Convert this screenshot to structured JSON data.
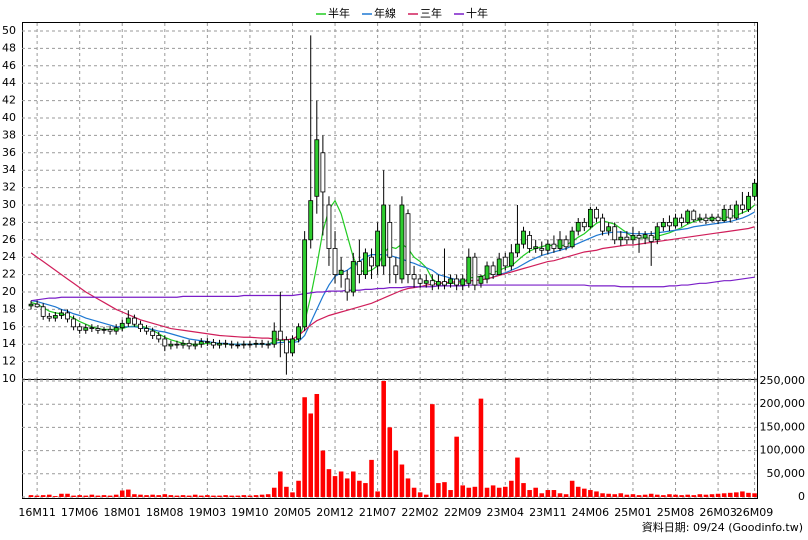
{
  "chart_data": {
    "type": "candlestick",
    "categories": [
      null,
      "16M11",
      null,
      null,
      null,
      null,
      null,
      null,
      "17M06",
      null,
      null,
      null,
      null,
      null,
      null,
      "18M01",
      null,
      null,
      null,
      null,
      null,
      null,
      "18M08",
      null,
      null,
      null,
      null,
      null,
      null,
      "19M03",
      null,
      null,
      null,
      null,
      null,
      null,
      "19M10",
      null,
      null,
      null,
      null,
      null,
      null,
      "20M05",
      null,
      null,
      null,
      null,
      null,
      null,
      "20M12",
      null,
      null,
      null,
      null,
      null,
      null,
      "21M07",
      null,
      null,
      null,
      null,
      null,
      null,
      "22M02",
      null,
      null,
      null,
      null,
      null,
      null,
      "22M09",
      null,
      null,
      null,
      null,
      null,
      null,
      "23M04",
      null,
      null,
      null,
      null,
      null,
      null,
      "23M11",
      null,
      null,
      null,
      null,
      null,
      null,
      "24M06",
      null,
      null,
      null,
      null,
      null,
      null,
      "25M01",
      null,
      null,
      null,
      null,
      null,
      null,
      "25M08",
      null,
      null,
      null,
      null,
      null,
      null,
      "26M03",
      null,
      null,
      null,
      null,
      null,
      "26M09"
    ],
    "open": [
      18.4,
      18.6,
      18.3,
      17.2,
      17.0,
      17.3,
      17.6,
      16.9,
      16.0,
      15.6,
      15.9,
      15.8,
      15.6,
      15.7,
      15.5,
      15.9,
      16.4,
      17.0,
      16.3,
      15.8,
      15.5,
      15.0,
      14.6,
      13.8,
      14.0,
      13.9,
      14.1,
      13.8,
      14.0,
      14.3,
      14.2,
      13.9,
      14.1,
      14.0,
      13.9,
      13.9,
      14.0,
      14.0,
      14.1,
      14.0,
      14.0,
      15.5,
      14.5,
      13.0,
      14.6,
      16,
      26,
      31,
      36,
      30,
      25,
      22,
      21.5,
      20,
      23.5,
      22,
      24,
      23,
      23,
      28,
      23,
      21.5,
      29,
      22,
      21.5,
      21,
      21.3,
      20.8,
      21.2,
      21,
      21.5,
      20.8,
      21,
      24,
      21,
      21.5,
      23,
      22,
      24,
      23,
      24.5,
      25.5,
      26.5,
      25,
      25,
      24.8,
      25.5,
      25,
      26,
      25.2,
      27,
      28,
      27.5,
      29.5,
      28.5,
      27,
      27.5,
      26,
      26.3,
      26,
      26.5,
      26.2,
      26.5,
      26,
      27.5,
      28,
      27.6,
      28.5,
      28,
      29.3,
      28.3,
      28.5,
      28.2,
      28.6,
      28.2,
      29.5,
      28.5,
      30,
      29.5,
      31
    ],
    "high": [
      19.0,
      19.0,
      18.7,
      17.6,
      17.7,
      18.0,
      18.0,
      17.3,
      16.4,
      16.3,
      16.3,
      16.2,
      16.0,
      16.1,
      16.3,
      16.8,
      17.9,
      17.4,
      16.7,
      16.2,
      15.9,
      15.4,
      15.0,
      14.4,
      14.4,
      14.5,
      14.5,
      14.4,
      14.7,
      14.7,
      14.6,
      14.5,
      14.5,
      14.4,
      14.3,
      14.4,
      14.4,
      14.5,
      14.5,
      14.4,
      16.5,
      20.0,
      14.9,
      15.0,
      16.4,
      27,
      49.5,
      42,
      38,
      31,
      27,
      24,
      22.5,
      24.5,
      26,
      25,
      25,
      28,
      34,
      30,
      24,
      31,
      29.5,
      23,
      22,
      22,
      22,
      22,
      25,
      22,
      22,
      22,
      25,
      24.5,
      22,
      23.5,
      23.5,
      24.5,
      24.5,
      25.5,
      30,
      27.5,
      27,
      26,
      25.8,
      26,
      26.5,
      27,
      26.5,
      27.5,
      28.5,
      28.5,
      29.8,
      29.8,
      29,
      28,
      28,
      27,
      27,
      27.5,
      27,
      27,
      27,
      28,
      28.5,
      28.8,
      29,
      29,
      29.5,
      29.5,
      29,
      29,
      29,
      29,
      30,
      30,
      30.5,
      31.5,
      31.5,
      33
    ],
    "low": [
      18.0,
      18.2,
      16.8,
      16.6,
      16.6,
      16.9,
      16.5,
      15.6,
      15.2,
      15.2,
      15.4,
      15.2,
      15.2,
      15.1,
      15.1,
      15.5,
      16.0,
      16.0,
      15.4,
      15.1,
      14.6,
      14.2,
      13.2,
      13.4,
      13.5,
      13.5,
      13.4,
      13.4,
      13.6,
      13.8,
      13.5,
      13.5,
      13.6,
      13.5,
      13.5,
      13.5,
      13.6,
      13.6,
      13.6,
      13.5,
      13.6,
      12.5,
      10.5,
      12.6,
      14.2,
      15.5,
      25,
      29,
      26.5,
      23,
      21,
      20.5,
      19,
      19.5,
      21,
      21.5,
      21.5,
      22,
      22,
      21,
      21,
      21,
      21,
      20.5,
      20.5,
      20.5,
      20.2,
      20.3,
      20.3,
      20.5,
      20.2,
      20.2,
      20.5,
      20.2,
      20.5,
      21,
      21.5,
      22,
      22.5,
      22.5,
      24,
      25,
      24.5,
      24.5,
      24.2,
      24.3,
      24.5,
      24.7,
      24.8,
      25,
      26.5,
      27,
      27.3,
      28,
      26.5,
      26.5,
      25.5,
      25.3,
      25.5,
      25.5,
      24.5,
      25.5,
      23,
      25.5,
      27,
      27,
      27.3,
      27.5,
      27.8,
      28,
      28,
      27.8,
      28,
      27.8,
      28,
      28,
      28.3,
      29,
      29.2,
      30.5
    ],
    "close": [
      18.6,
      18.3,
      17.2,
      17.0,
      17.3,
      17.6,
      16.9,
      16.0,
      15.6,
      15.9,
      15.8,
      15.6,
      15.7,
      15.5,
      15.9,
      16.4,
      17.0,
      16.3,
      15.8,
      15.5,
      15.0,
      14.6,
      13.8,
      14.0,
      13.9,
      14.1,
      13.8,
      14.0,
      14.3,
      14.2,
      13.9,
      14.1,
      14.0,
      13.9,
      13.9,
      14.0,
      14.0,
      14.1,
      14.0,
      13.9,
      15.5,
      14.5,
      13.0,
      14.6,
      16.0,
      26,
      30.5,
      37.5,
      31.5,
      25,
      22,
      22.5,
      20,
      23.5,
      22,
      24.5,
      23,
      27,
      30,
      24,
      22,
      30,
      22,
      21.5,
      21,
      21.3,
      20.8,
      21.2,
      20.8,
      21.5,
      20.8,
      21.5,
      24,
      20.8,
      21.8,
      23,
      22,
      23.8,
      23,
      24.5,
      25.5,
      27,
      25,
      25.2,
      24.8,
      25.5,
      25,
      26,
      25.2,
      27,
      28,
      27.5,
      29.5,
      28.5,
      27,
      27.5,
      26,
      26.3,
      26,
      26.5,
      26.2,
      26.6,
      25.8,
      27.5,
      28,
      27.6,
      28.5,
      28,
      29.3,
      28.3,
      28.5,
      28.2,
      28.6,
      28.2,
      29.5,
      28.5,
      30,
      29.5,
      31,
      32.5
    ],
    "up_color": "#2ecc2e",
    "down_color": "#ffffff",
    "ylim": [
      10,
      50
    ],
    "yticks": [
      10,
      12,
      14,
      16,
      18,
      20,
      22,
      24,
      26,
      28,
      30,
      32,
      34,
      36,
      38,
      40,
      42,
      44,
      46,
      48,
      50
    ],
    "grid": true,
    "series": [
      {
        "name": "半年",
        "color": "#22cc22",
        "values": [
          18.8,
          18.6,
          18.2,
          17.8,
          17.6,
          17.5,
          17.3,
          17.0,
          16.6,
          16.3,
          16.0,
          15.8,
          15.7,
          15.7,
          15.7,
          15.8,
          16.0,
          16.1,
          16.1,
          15.9,
          15.6,
          15.2,
          14.8,
          14.5,
          14.3,
          14.1,
          14.0,
          14.0,
          14.0,
          14.1,
          14.1,
          14.1,
          14.0,
          14.0,
          14.0,
          14.0,
          14.0,
          14.0,
          14.0,
          14.0,
          14.3,
          14.5,
          14.3,
          14.3,
          14.6,
          16.5,
          19.5,
          23,
          27,
          29.5,
          30.5,
          29,
          26.5,
          24,
          22.5,
          22.3,
          22.5,
          23,
          24.5,
          25.2,
          25.0,
          25.5,
          25.0,
          24.0,
          23.5,
          22.8,
          21.5,
          21,
          21,
          21,
          21,
          21.1,
          21.6,
          21.7,
          21.8,
          22.0,
          22.2,
          22.5,
          22.8,
          23.0,
          23.6,
          24.2,
          24.7,
          25.0,
          25.2,
          25.4,
          25.3,
          25.3,
          25.4,
          25.8,
          26.3,
          26.7,
          27.3,
          27.9,
          28.2,
          28.0,
          27.8,
          27.3,
          26.8,
          26.3,
          26.2,
          26.2,
          26.2,
          26.4,
          26.6,
          26.8,
          27.1,
          27.4,
          27.8,
          28.1,
          28.3,
          28.4,
          28.5,
          28.4,
          28.5,
          28.7,
          28.8,
          29.1,
          29.4,
          30.0
        ]
      },
      {
        "name": "年線",
        "color": "#1e78d2",
        "values": [
          19.0,
          18.9,
          18.7,
          18.5,
          18.3,
          18.0,
          17.8,
          17.5,
          17.3,
          17.0,
          16.8,
          16.6,
          16.4,
          16.2,
          16.0,
          16.0,
          16.0,
          16.0,
          15.9,
          15.8,
          15.7,
          15.5,
          15.4,
          15.2,
          15.0,
          14.8,
          14.6,
          14.5,
          14.4,
          14.3,
          14.2,
          14.1,
          14.1,
          14.0,
          14.0,
          14.0,
          14.0,
          14.0,
          14.0,
          14.0,
          14.1,
          14.2,
          14.2,
          14.2,
          14.3,
          15.0,
          16.5,
          18,
          19.5,
          20.8,
          21.8,
          22.2,
          22.5,
          23.0,
          23.5,
          24.0,
          24.3,
          24.3,
          24.3,
          24.2,
          24.0,
          23.8,
          23.5,
          23.3,
          23.0,
          22.8,
          22.5,
          22.0,
          21.8,
          21.6,
          21.4,
          21.3,
          21.3,
          21.3,
          21.4,
          21.5,
          21.7,
          22.0,
          22.2,
          22.5,
          22.8,
          23.2,
          23.6,
          23.9,
          24.2,
          24.4,
          24.6,
          24.8,
          25.0,
          25.3,
          25.6,
          25.9,
          26.2,
          26.5,
          26.7,
          26.8,
          26.9,
          26.9,
          26.8,
          26.7,
          26.7,
          26.7,
          26.7,
          26.8,
          26.9,
          27.0,
          27.1,
          27.2,
          27.3,
          27.5,
          27.6,
          27.7,
          27.8,
          27.9,
          28.0,
          28.1,
          28.3,
          28.5,
          28.8,
          29.2
        ]
      },
      {
        "name": "三年",
        "color": "#d01e5a",
        "values": [
          24.5,
          24.0,
          23.5,
          23.0,
          22.5,
          22.0,
          21.5,
          21.0,
          20.5,
          20.0,
          19.6,
          19.2,
          18.8,
          18.4,
          18.0,
          17.7,
          17.4,
          17.1,
          16.8,
          16.6,
          16.4,
          16.2,
          16.0,
          15.8,
          15.7,
          15.6,
          15.5,
          15.4,
          15.3,
          15.2,
          15.1,
          15.0,
          14.95,
          14.9,
          14.85,
          14.8,
          14.8,
          14.75,
          14.7,
          14.7,
          14.6,
          14.6,
          14.5,
          14.6,
          15.0,
          15.6,
          16.2,
          16.7,
          17.0,
          17.3,
          17.5,
          17.7,
          17.9,
          18.1,
          18.3,
          18.5,
          18.7,
          19.0,
          19.3,
          19.6,
          19.9,
          20.2,
          20.4,
          20.5,
          20.6,
          20.8,
          20.9,
          21.0,
          21.1,
          21.1,
          21.2,
          21.2,
          21.3,
          21.3,
          21.4,
          21.5,
          21.7,
          21.9,
          22.1,
          22.3,
          22.5,
          22.7,
          22.9,
          23.1,
          23.3,
          23.5,
          23.6,
          23.8,
          24.0,
          24.2,
          24.4,
          24.6,
          24.7,
          24.8,
          25.0,
          25.1,
          25.2,
          25.3,
          25.4,
          25.4,
          25.5,
          25.6,
          25.7,
          25.8,
          25.9,
          26.0,
          26.1,
          26.2,
          26.3,
          26.4,
          26.5,
          26.6,
          26.7,
          26.8,
          26.9,
          27.0,
          27.1,
          27.2,
          27.3,
          27.5
        ]
      },
      {
        "name": "十年",
        "color": "#7a1ec8",
        "values": [
          19.0,
          19.1,
          19.2,
          19.3,
          19.3,
          19.4,
          19.4,
          19.4,
          19.4,
          19.4,
          19.4,
          19.4,
          19.4,
          19.4,
          19.4,
          19.4,
          19.4,
          19.4,
          19.4,
          19.4,
          19.4,
          19.4,
          19.4,
          19.4,
          19.4,
          19.5,
          19.5,
          19.5,
          19.5,
          19.5,
          19.5,
          19.5,
          19.5,
          19.5,
          19.5,
          19.6,
          19.6,
          19.6,
          19.6,
          19.6,
          19.6,
          19.6,
          19.6,
          19.6,
          19.7,
          19.8,
          19.9,
          20.0,
          20.0,
          20.1,
          20.1,
          20.1,
          20.2,
          20.2,
          20.2,
          20.3,
          20.3,
          20.4,
          20.4,
          20.5,
          20.5,
          20.5,
          20.6,
          20.6,
          20.6,
          20.6,
          20.6,
          20.7,
          20.7,
          20.7,
          20.7,
          20.7,
          20.8,
          20.8,
          20.8,
          20.8,
          20.8,
          20.8,
          20.8,
          20.8,
          20.8,
          20.8,
          20.8,
          20.8,
          20.8,
          20.8,
          20.8,
          20.8,
          20.8,
          20.8,
          20.8,
          20.8,
          20.7,
          20.7,
          20.7,
          20.7,
          20.7,
          20.6,
          20.6,
          20.6,
          20.6,
          20.6,
          20.6,
          20.6,
          20.6,
          20.7,
          20.7,
          20.8,
          20.8,
          20.9,
          21.0,
          21.0,
          21.1,
          21.2,
          21.3,
          21.3,
          21.4,
          21.5,
          21.6,
          21.7
        ]
      }
    ],
    "volume": {
      "type": "bar",
      "color": "#ff0000",
      "values": [
        4000,
        3000,
        4000,
        5000,
        2000,
        7000,
        7000,
        3000,
        4000,
        3000,
        5000,
        3000,
        4000,
        3000,
        5000,
        14000,
        16000,
        6000,
        5000,
        4000,
        5000,
        4000,
        6000,
        4000,
        3000,
        4000,
        3000,
        5000,
        3000,
        4000,
        3000,
        3000,
        4000,
        3000,
        3000,
        4000,
        3000,
        4000,
        5000,
        6000,
        20000,
        55000,
        22000,
        10000,
        35000,
        215000,
        180000,
        222000,
        100000,
        60000,
        45000,
        55000,
        40000,
        55000,
        35000,
        30000,
        80000,
        12000,
        250000,
        150000,
        100000,
        70000,
        40000,
        20000,
        10000,
        5000,
        200000,
        30000,
        32000,
        15000,
        130000,
        25000,
        20000,
        22000,
        212000,
        20000,
        25000,
        20000,
        22000,
        35000,
        85000,
        30000,
        15000,
        20000,
        8000,
        15000,
        15000,
        8000,
        6000,
        35000,
        22000,
        18000,
        15000,
        12000,
        8000,
        7000,
        6000,
        8000,
        5000,
        6000,
        4000,
        5000,
        7000,
        5000,
        4000,
        6000,
        5000,
        4000,
        5000,
        4000,
        6000,
        5000,
        6000,
        7000,
        8000,
        9000,
        10000,
        12000,
        9000,
        8000
      ],
      "ylim": [
        0,
        250000
      ],
      "yticks": [
        0,
        {
          "value": 50000,
          "label": "50,000"
        },
        {
          "value": 100000,
          "label": "100,000"
        },
        {
          "value": 150000,
          "label": "150,000"
        },
        {
          "value": 200000,
          "label": "200,000"
        },
        {
          "value": 250000,
          "label": "250,000"
        }
      ]
    },
    "source": "資料日期: 09/24 (Goodinfo.tw)"
  }
}
